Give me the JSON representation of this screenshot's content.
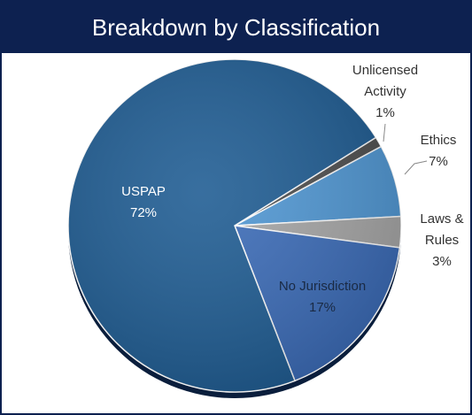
{
  "chart_data": {
    "type": "pie",
    "title": "Breakdown by Classification",
    "categories": [
      "Unlicensed Activity",
      "Ethics",
      "Laws & Rules",
      "No Jurisdiction",
      "USPAP"
    ],
    "values": [
      1,
      7,
      3,
      17,
      72
    ],
    "value_labels": [
      "1%",
      "7%",
      "3%",
      "17%",
      "72%"
    ],
    "colors": [
      "#4d4d4d",
      "#4f97d4",
      "#a6a6a6",
      "#3a6bb8",
      "#1d5b92"
    ]
  }
}
